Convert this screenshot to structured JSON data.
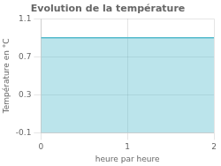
{
  "chart_data": {
    "type": "area",
    "title": "Evolution de la température",
    "xlabel": "heure par heure",
    "ylabel": "Température en °C",
    "x": [
      0,
      2
    ],
    "values": [
      0.9,
      0.9
    ],
    "color": "#55bbcc",
    "xlim": [
      0,
      2
    ],
    "xticks": [
      0,
      1,
      2
    ],
    "ylim": [
      -0.1,
      1.1
    ],
    "yticks": [
      -0.1,
      0.3,
      0.7,
      1.1
    ],
    "grid": true
  }
}
